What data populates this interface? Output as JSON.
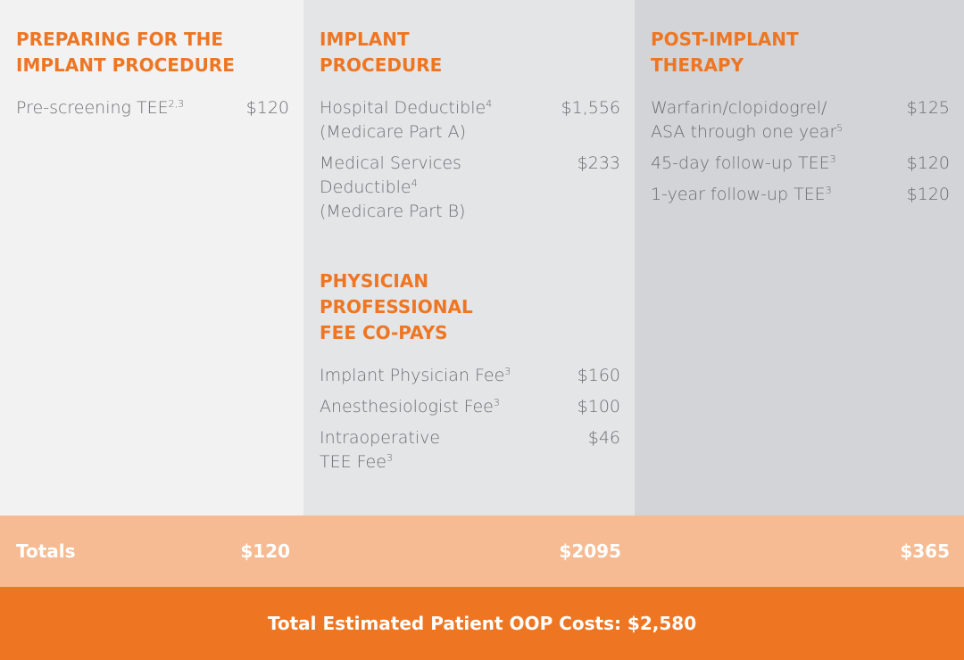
{
  "columns": [
    {
      "sections": [
        {
          "title": [
            "PREPARING FOR THE",
            "IMPLANT PROCEDURE"
          ],
          "items": [
            {
              "lines": [
                {
                  "text": "Pre-screening TEE",
                  "sup": "2,3"
                }
              ],
              "cost": "$120"
            }
          ]
        }
      ]
    },
    {
      "sections": [
        {
          "title": [
            "IMPLANT",
            "PROCEDURE"
          ],
          "items": [
            {
              "lines": [
                {
                  "text": "Hospital Deductible",
                  "sup": "4"
                },
                {
                  "text": "(Medicare Part A)"
                }
              ],
              "cost": "$1,556"
            },
            {
              "lines": [
                {
                  "text": "Medical Services"
                },
                {
                  "text": "Deductible",
                  "sup": "4"
                },
                {
                  "text": "(Medicare Part B)"
                }
              ],
              "cost": "$233"
            }
          ]
        },
        {
          "title": [
            "PHYSICIAN",
            "PROFESSIONAL",
            "FEE CO-PAYS"
          ],
          "items": [
            {
              "lines": [
                {
                  "text": "Implant Physician Fee",
                  "sup": "3"
                }
              ],
              "cost": "$160"
            },
            {
              "lines": [
                {
                  "text": "Anesthesiologist Fee",
                  "sup": "3"
                }
              ],
              "cost": "$100"
            },
            {
              "lines": [
                {
                  "text": "Intraoperative"
                },
                {
                  "text": "TEE Fee",
                  "sup": "3"
                }
              ],
              "cost": "$46"
            }
          ]
        }
      ]
    },
    {
      "sections": [
        {
          "title": [
            "POST-IMPLANT",
            "THERAPY"
          ],
          "items": [
            {
              "lines": [
                {
                  "text": "Warfarin/clopidogrel/"
                },
                {
                  "text": "ASA through one year",
                  "sup": "5"
                }
              ],
              "cost": "$125"
            },
            {
              "lines": [
                {
                  "text": "45-day follow-up TEE",
                  "sup": "3"
                }
              ],
              "cost": "$120"
            },
            {
              "lines": [
                {
                  "text": "1-year follow-up TEE",
                  "sup": "3"
                }
              ],
              "cost": "$120"
            }
          ]
        }
      ]
    }
  ],
  "totals": {
    "label": "Totals",
    "values": [
      "$120",
      "$2095",
      "$365"
    ]
  },
  "footer": "Total Estimated Patient OOP Costs: $2,580"
}
